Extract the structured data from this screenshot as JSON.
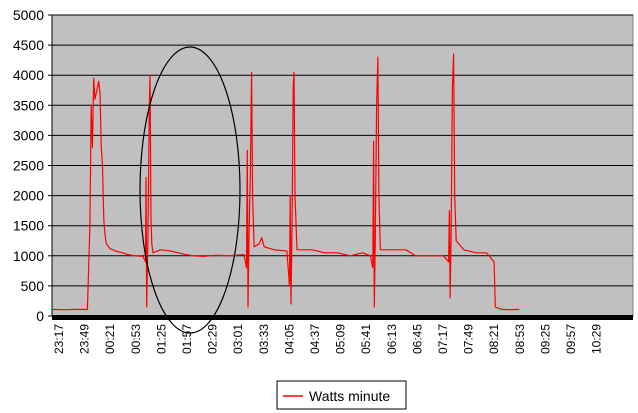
{
  "chart_data": {
    "type": "line",
    "title": "",
    "xlabel": "",
    "ylabel": "",
    "ylim": [
      0,
      5000
    ],
    "yticks": [
      0,
      500,
      1000,
      1500,
      2000,
      2500,
      3000,
      3500,
      4000,
      4500,
      5000
    ],
    "xtick_labels": [
      "23:17",
      "23:49",
      "00:21",
      "00:53",
      "01:25",
      "01:57",
      "02:29",
      "03:01",
      "03:33",
      "04:05",
      "04:37",
      "05:09",
      "05:41",
      "06:13",
      "06:45",
      "07:17",
      "07:49",
      "08:21",
      "08:53",
      "09:25",
      "09:57",
      "10:29"
    ],
    "x_range": [
      0,
      23
    ],
    "grid": true,
    "legend_position": "bottom-center",
    "plot_background": "#c0c0c0",
    "series": [
      {
        "name": "Watts minute",
        "color": "#ff0000",
        "points": [
          [
            0,
            110
          ],
          [
            0.5,
            105
          ],
          [
            1,
            112
          ],
          [
            1.4,
            108
          ],
          [
            1.5,
            1500
          ],
          [
            1.55,
            3500
          ],
          [
            1.6,
            2800
          ],
          [
            1.65,
            3950
          ],
          [
            1.7,
            3600
          ],
          [
            1.8,
            3800
          ],
          [
            1.85,
            3900
          ],
          [
            1.9,
            3700
          ],
          [
            1.95,
            2800
          ],
          [
            2.0,
            2500
          ],
          [
            2.05,
            1600
          ],
          [
            2.1,
            1350
          ],
          [
            2.15,
            1200
          ],
          [
            2.3,
            1120
          ],
          [
            2.5,
            1080
          ],
          [
            2.8,
            1050
          ],
          [
            3.0,
            1020
          ],
          [
            3.3,
            1000
          ],
          [
            3.6,
            990
          ],
          [
            3.7,
            900
          ],
          [
            3.72,
            2300
          ],
          [
            3.75,
            150
          ],
          [
            3.8,
            1400
          ],
          [
            3.85,
            3500
          ],
          [
            3.88,
            4000
          ],
          [
            3.92,
            1600
          ],
          [
            3.95,
            1200
          ],
          [
            4.0,
            1050
          ],
          [
            4.3,
            1100
          ],
          [
            4.7,
            1080
          ],
          [
            5.0,
            1050
          ],
          [
            5.3,
            1020
          ],
          [
            5.6,
            1000
          ],
          [
            6.0,
            990
          ],
          [
            6.5,
            1010
          ],
          [
            7.0,
            1000
          ],
          [
            7.6,
            1020
          ],
          [
            7.7,
            800
          ],
          [
            7.73,
            2750
          ],
          [
            7.76,
            150
          ],
          [
            7.8,
            1300
          ],
          [
            7.85,
            2300
          ],
          [
            7.9,
            4050
          ],
          [
            7.94,
            2000
          ],
          [
            8.0,
            1150
          ],
          [
            8.2,
            1200
          ],
          [
            8.3,
            1300
          ],
          [
            8.4,
            1150
          ],
          [
            8.8,
            1100
          ],
          [
            9.3,
            1080
          ],
          [
            9.4,
            500
          ],
          [
            9.43,
            2000
          ],
          [
            9.46,
            200
          ],
          [
            9.5,
            1400
          ],
          [
            9.55,
            3800
          ],
          [
            9.58,
            4050
          ],
          [
            9.62,
            2000
          ],
          [
            9.7,
            1100
          ],
          [
            10.3,
            1100
          ],
          [
            10.8,
            1050
          ],
          [
            11.3,
            1050
          ],
          [
            11.8,
            1000
          ],
          [
            12.3,
            1050
          ],
          [
            12.6,
            1000
          ],
          [
            12.7,
            800
          ],
          [
            12.73,
            2900
          ],
          [
            12.76,
            150
          ],
          [
            12.8,
            1300
          ],
          [
            12.85,
            3500
          ],
          [
            12.9,
            4300
          ],
          [
            12.94,
            2000
          ],
          [
            13.0,
            1100
          ],
          [
            13.5,
            1100
          ],
          [
            14.0,
            1100
          ],
          [
            14.4,
            1000
          ],
          [
            15.0,
            1000
          ],
          [
            15.5,
            1000
          ],
          [
            15.7,
            900
          ],
          [
            15.73,
            1750
          ],
          [
            15.76,
            300
          ],
          [
            15.8,
            1300
          ],
          [
            15.85,
            3800
          ],
          [
            15.9,
            4350
          ],
          [
            15.94,
            2000
          ],
          [
            16.0,
            1250
          ],
          [
            16.3,
            1100
          ],
          [
            16.8,
            1050
          ],
          [
            17.2,
            1050
          ],
          [
            17.4,
            950
          ],
          [
            17.5,
            900
          ],
          [
            17.55,
            150
          ],
          [
            17.8,
            110
          ],
          [
            18.2,
            105
          ],
          [
            18.5,
            110
          ]
        ]
      }
    ]
  },
  "legend": {
    "label": "Watts minute"
  }
}
